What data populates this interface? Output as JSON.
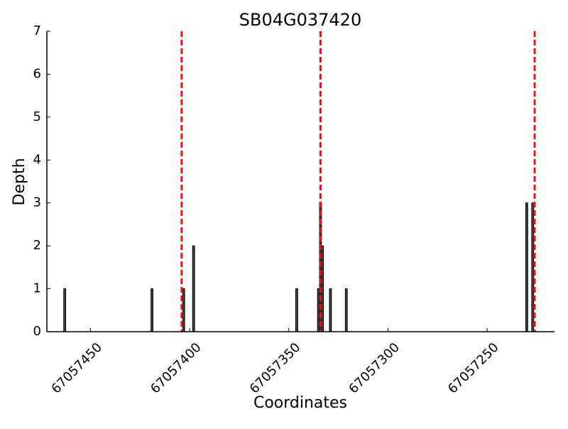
{
  "chart_data": {
    "type": "bar",
    "title": "SB04G037420",
    "x_label": "Coordinates",
    "y_label": "Depth",
    "x": [
      67057463,
      67057419,
      67057403,
      67057398,
      67057346,
      67057335,
      67057334,
      67057333,
      67057329,
      67057321,
      67057230,
      67057227
    ],
    "values": [
      1,
      1,
      1,
      2,
      1,
      1,
      3,
      2,
      1,
      1,
      3,
      3
    ],
    "color": "#444444",
    "xlim": [
      67057472,
      67057216
    ],
    "xticks": [
      67057450,
      67057400,
      67057350,
      67057300,
      67057250
    ],
    "ylim": [
      0,
      7
    ],
    "yticks": [
      0,
      1,
      2,
      3,
      4,
      5,
      6,
      7
    ],
    "vlines": [
      67057404,
      67057334,
      67057226
    ],
    "vline_color": "#ee1111"
  }
}
